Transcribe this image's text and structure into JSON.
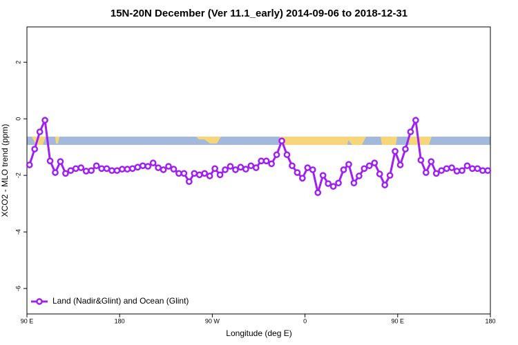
{
  "chart_data": {
    "type": "line",
    "title": "15N-20N December (Ver 11.1_early)   2014-09-06 to 2018-12-31",
    "xlabel": "Longitude (deg E)",
    "ylabel": "XCO2 - MLO trend (ppm)",
    "xlim": [
      90,
      540
    ],
    "ylim": [
      -6.9,
      3.25
    ],
    "xticks": [
      {
        "value": 90,
        "label": "90 E"
      },
      180,
      {
        "value": 270,
        "label": "90 W"
      },
      {
        "value": 360,
        "label": "0"
      },
      {
        "value": 450,
        "label": "90 E"
      },
      {
        "value": 540,
        "label": "180"
      }
    ],
    "yticks": [
      -6,
      -4,
      -2,
      0,
      2
    ],
    "legend_position": "bottom-left",
    "x": [
      92.5,
      97.5,
      102.5,
      107.5,
      112.5,
      117.5,
      122.5,
      127.5,
      132.5,
      137.5,
      142.5,
      147.5,
      152.5,
      157.5,
      162.5,
      167.5,
      172.5,
      177.5,
      182.5,
      187.5,
      192.5,
      197.5,
      202.5,
      207.5,
      212.5,
      217.5,
      222.5,
      227.5,
      232.5,
      237.5,
      242.5,
      247.5,
      252.5,
      257.5,
      262.5,
      267.5,
      272.5,
      277.5,
      282.5,
      287.5,
      292.5,
      297.5,
      302.5,
      307.5,
      312.5,
      317.5,
      322.5,
      327.5,
      332.5,
      337.5,
      342.5,
      347.5,
      352.5,
      357.5,
      362.5,
      367.5,
      372.5,
      377.5,
      382.5,
      387.5,
      392.5,
      397.5,
      402.5,
      407.5,
      412.5,
      417.5,
      422.5,
      427.5,
      432.5,
      437.5,
      442.5,
      447.5,
      452.5,
      457.5,
      462.5,
      467.5,
      472.5,
      477.5,
      482.5,
      487.5,
      492.5,
      497.5,
      502.5,
      507.5,
      512.5,
      517.5,
      522.5,
      527.5,
      532.5,
      537.5
    ],
    "series": [
      {
        "name": "Land (Nadir&Glint) and Ocean (Glint)",
        "color": "#a020f0",
        "values": [
          -1.63,
          -1.07,
          -0.46,
          -0.05,
          -1.49,
          -1.9,
          -1.51,
          -1.93,
          -1.83,
          -1.76,
          -1.73,
          -1.85,
          -1.83,
          -1.66,
          -1.76,
          -1.76,
          -1.83,
          -1.83,
          -1.78,
          -1.78,
          -1.76,
          -1.71,
          -1.66,
          -1.68,
          -1.56,
          -1.73,
          -1.8,
          -1.68,
          -1.78,
          -1.93,
          -1.93,
          -2.22,
          -1.93,
          -1.98,
          -1.93,
          -2.02,
          -1.76,
          -1.98,
          -1.8,
          -1.68,
          -1.8,
          -1.71,
          -1.78,
          -1.66,
          -1.73,
          -1.49,
          -1.49,
          -1.59,
          -1.27,
          -0.78,
          -1.27,
          -1.66,
          -1.9,
          -2.1,
          -1.73,
          -1.8,
          -2.61,
          -2.0,
          -2.29,
          -2.39,
          -2.27,
          -1.8,
          -1.61,
          -2.27,
          -2.02,
          -1.76,
          -1.66,
          -1.56,
          -1.95,
          -2.34,
          -2.0,
          -1.15,
          -1.63,
          -1.07,
          -0.46,
          -0.05,
          -1.46,
          -1.9,
          -1.51,
          -1.93,
          -1.83,
          -1.76,
          -1.73,
          -1.85,
          -1.83,
          -1.66,
          -1.76,
          -1.76,
          -1.83,
          -1.83
        ]
      }
    ]
  }
}
